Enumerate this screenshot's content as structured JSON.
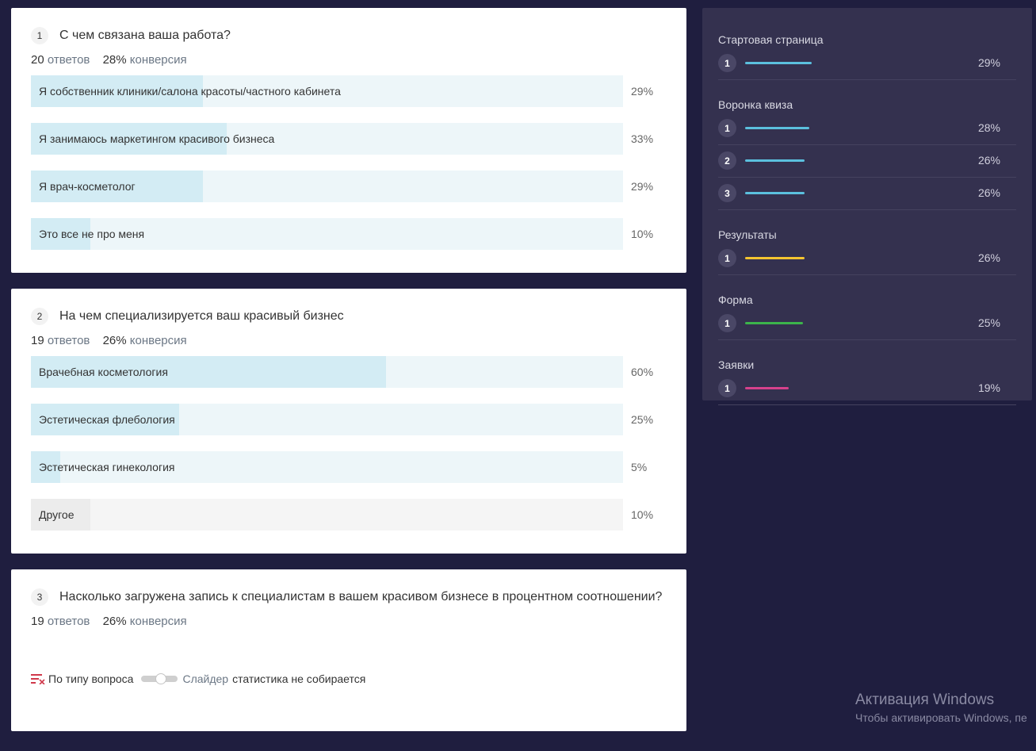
{
  "questions": [
    {
      "number": "1",
      "title": "С чем связана ваша работа?",
      "responses_count": "20",
      "responses_label": "ответов",
      "conversion_value": "28%",
      "conversion_label": "конверсия",
      "answers": [
        {
          "label": "Я собственник клиники/салона красоты/частного кабинета",
          "percent": "29%",
          "fraction": 0.29
        },
        {
          "label": "Я занимаюсь маркетингом красивого бизнеса",
          "percent": "33%",
          "fraction": 0.33
        },
        {
          "label": "Я врач-косметолог",
          "percent": "29%",
          "fraction": 0.29
        },
        {
          "label": "Это все не про меня",
          "percent": "10%",
          "fraction": 0.1
        }
      ]
    },
    {
      "number": "2",
      "title": "На чем специализируется ваш красивый бизнес",
      "responses_count": "19",
      "responses_label": "ответов",
      "conversion_value": "26%",
      "conversion_label": "конверсия",
      "answers": [
        {
          "label": "Врачебная косметология",
          "percent": "60%",
          "fraction": 0.6
        },
        {
          "label": "Эстетическая флебология",
          "percent": "25%",
          "fraction": 0.25
        },
        {
          "label": "Эстетическая гинекология",
          "percent": "5%",
          "fraction": 0.05
        },
        {
          "label": "Другое",
          "percent": "10%",
          "fraction": 0.1,
          "style": "gray"
        }
      ]
    },
    {
      "number": "3",
      "title": "Насколько загружена запись к специалистам в вашем красивом бизнесе в процентном соотношении?",
      "responses_count": "19",
      "responses_label": "ответов",
      "conversion_value": "26%",
      "conversion_label": "конверсия",
      "slider_note": {
        "by_type_label": "По типу вопроса",
        "type_name": "Слайдер",
        "note": "статистика не собирается"
      }
    }
  ],
  "funnel": [
    {
      "title": "Стартовая страница",
      "rows": [
        {
          "num": "1",
          "percent": "29%",
          "fraction": 0.29,
          "color": "#5bc0de"
        }
      ]
    },
    {
      "title": "Воронка квиза",
      "rows": [
        {
          "num": "1",
          "percent": "28%",
          "fraction": 0.28,
          "color": "#5bc0de"
        },
        {
          "num": "2",
          "percent": "26%",
          "fraction": 0.26,
          "color": "#5bc0de"
        },
        {
          "num": "3",
          "percent": "26%",
          "fraction": 0.26,
          "color": "#5bc0de"
        }
      ]
    },
    {
      "title": "Результаты",
      "rows": [
        {
          "num": "1",
          "percent": "26%",
          "fraction": 0.26,
          "color": "#f4c430"
        }
      ]
    },
    {
      "title": "Форма",
      "rows": [
        {
          "num": "1",
          "percent": "25%",
          "fraction": 0.25,
          "color": "#3cb44b"
        }
      ]
    },
    {
      "title": "Заявки",
      "rows": [
        {
          "num": "1",
          "percent": "19%",
          "fraction": 0.19,
          "color": "#d6418c"
        }
      ]
    }
  ],
  "windows_watermark": {
    "title": "Активация Windows",
    "subtitle": "Чтобы активировать Windows, пе"
  }
}
